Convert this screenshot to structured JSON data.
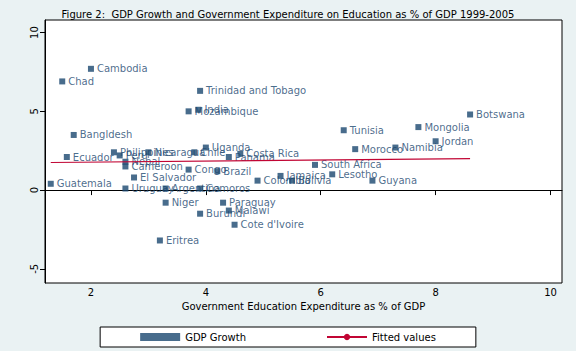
{
  "chart_data": {
    "type": "scatter",
    "title": "Figure 2:  GDP Growth and Government Expenditure on Education as % of GDP 1999-2005",
    "x_label": "Government Education Expenditure as % of GDP",
    "xlim": [
      1.2,
      10.2
    ],
    "xticks": [
      2,
      4,
      6,
      8,
      10
    ],
    "ylim": [
      -5.9,
      10.8
    ],
    "yticks": [
      -5,
      0,
      5,
      10
    ],
    "grid": false,
    "legend": "bottom",
    "series": [
      {
        "name": "GDP Growth",
        "type": "scatter",
        "color": "#1a476f",
        "marker": "square",
        "labels": [
          "Cambodia",
          "Chad",
          "Trinidad and Tobago",
          "India",
          "Mozambique",
          "Botswana",
          "Mongolia",
          "Tunisia",
          "Jordan",
          "Namibia",
          "Morocco",
          "Bangldesh",
          "Uganda",
          "Costa Rica",
          "Panama",
          "Chile",
          "Nicaragua",
          "Ecuador",
          "Philippines",
          "Peru",
          "Nepal",
          "Cameroon",
          "El Salvador",
          "Congo",
          "Brazil",
          "Uruguay",
          "Argentina",
          "Comoros",
          "Niger",
          "Paraguay",
          "Malawi",
          "Burundi",
          "Cote d'Ivoire",
          "Eritrea",
          "Guatemala",
          "South Africa",
          "Lesotho",
          "Jamaica",
          "Colombia",
          "Bolivia",
          "Guyana"
        ],
        "x": [
          2.0,
          1.5,
          3.9,
          3.87,
          3.7,
          8.6,
          7.7,
          6.4,
          8.0,
          7.3,
          6.6,
          1.7,
          4.0,
          4.6,
          4.4,
          3.8,
          3.0,
          1.58,
          2.4,
          2.5,
          2.6,
          2.6,
          2.75,
          3.7,
          4.2,
          2.6,
          3.3,
          3.9,
          3.3,
          4.3,
          4.4,
          3.9,
          4.5,
          3.2,
          1.3,
          5.9,
          6.2,
          5.3,
          4.9,
          5.5,
          6.9
        ],
        "values": [
          7.7,
          6.9,
          6.3,
          5.1,
          5.0,
          4.8,
          4.0,
          3.8,
          3.1,
          2.7,
          2.6,
          3.5,
          2.7,
          2.3,
          2.1,
          2.4,
          2.4,
          2.1,
          2.4,
          2.2,
          1.8,
          1.5,
          0.8,
          1.3,
          1.2,
          0.1,
          0.1,
          0.1,
          -0.8,
          -0.8,
          -1.3,
          -1.5,
          -2.2,
          -3.2,
          0.4,
          1.6,
          1.0,
          0.9,
          0.6,
          0.6,
          0.6
        ]
      },
      {
        "name": "Fitted values",
        "type": "line",
        "color": "#c10534",
        "line_style": "solid",
        "x": [
          1.3,
          8.6
        ],
        "values": [
          1.75,
          2.0
        ]
      }
    ]
  }
}
